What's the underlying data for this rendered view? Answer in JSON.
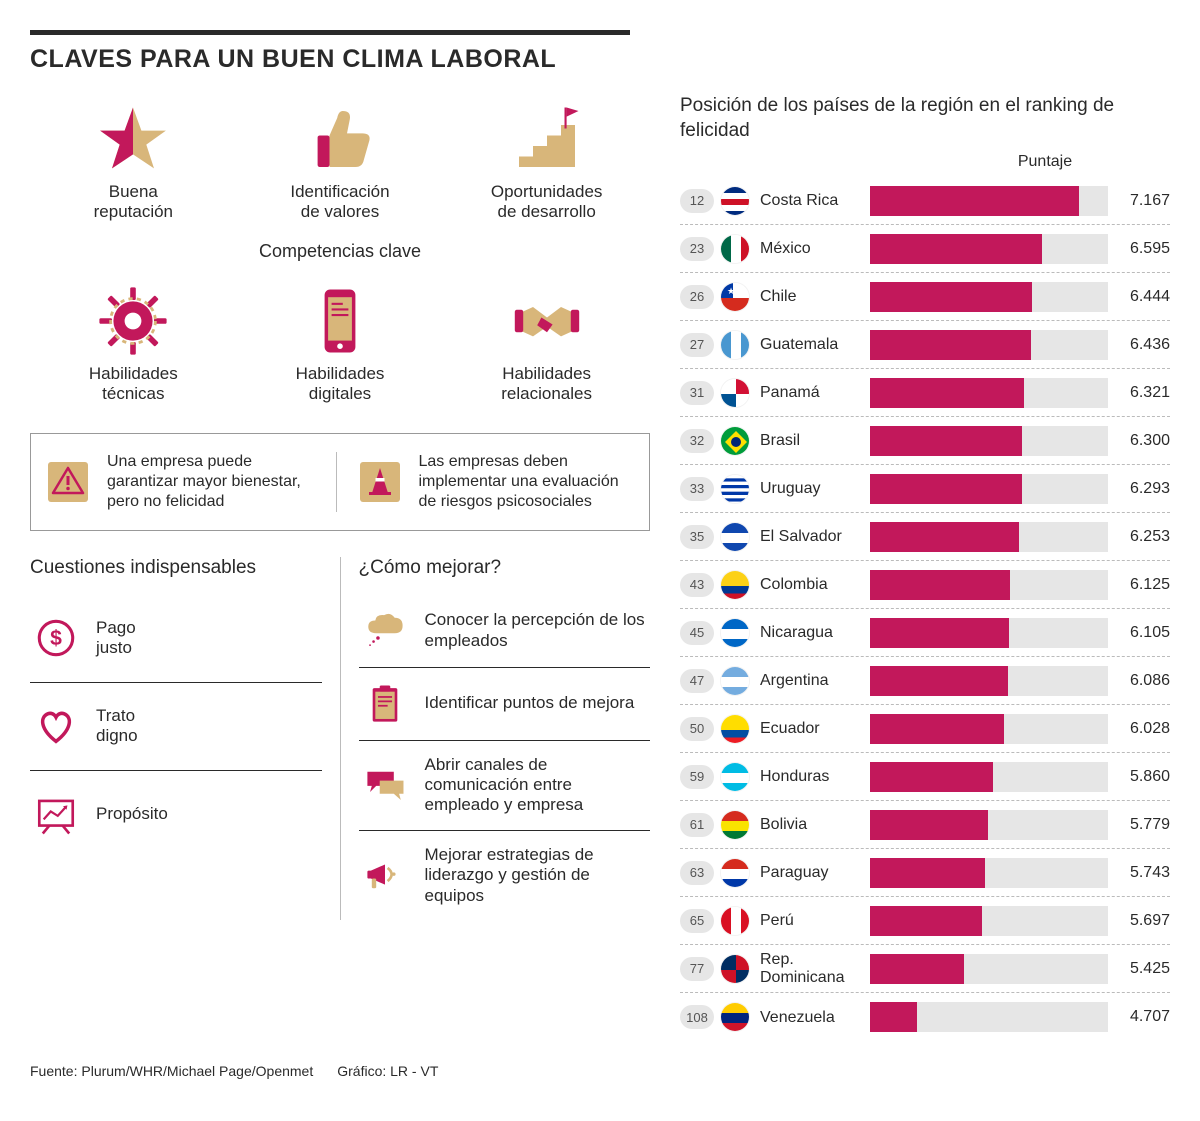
{
  "title": "CLAVES PARA UN BUEN CLIMA LABORAL",
  "colors": {
    "accent": "#c2185b",
    "tan": "#d8b67a",
    "pill": "#e6e6e6",
    "text": "#2a2a2a"
  },
  "iconsTop": [
    {
      "icon": "star",
      "label": "Buena\nreputación"
    },
    {
      "icon": "thumb",
      "label": "Identificación\nde valores"
    },
    {
      "icon": "stairs",
      "label": "Oportunidades\nde desarrollo"
    }
  ],
  "subHead": "Competencias clave",
  "iconsMid": [
    {
      "icon": "gear",
      "label": "Habilidades\ntécnicas"
    },
    {
      "icon": "phone",
      "label": "Habilidades\ndigitales"
    },
    {
      "icon": "handshake",
      "label": "Habilidades\nrelacionales"
    }
  ],
  "callouts": [
    {
      "icon": "warning",
      "text": "Una empresa puede garantizar mayor bienestar, pero no felicidad"
    },
    {
      "icon": "cone",
      "text": "Las empresas deben implementar una evaluación de riesgos psicosociales"
    }
  ],
  "essentials": {
    "title": "Cuestiones indispensables",
    "items": [
      {
        "icon": "dollar",
        "label": "Pago\njusto"
      },
      {
        "icon": "heart",
        "label": "Trato\ndigno"
      },
      {
        "icon": "chart",
        "label": "Propósito"
      }
    ]
  },
  "improve": {
    "title": "¿Cómo mejorar?",
    "items": [
      {
        "icon": "cloud",
        "label": "Conocer la percepción de los empleados"
      },
      {
        "icon": "clipboard",
        "label": "Identificar puntos de mejora"
      },
      {
        "icon": "chat",
        "label": "Abrir canales de comunicación entre empleado y empresa"
      },
      {
        "icon": "megaphone",
        "label": "Mejorar estrategias de liderazgo y gestión de equipos"
      }
    ]
  },
  "ranking": {
    "title": "Posición de los países de la región en el ranking de felicidad",
    "scoreHead": "Puntaje",
    "min": 4.0,
    "max": 7.6,
    "rows": [
      {
        "rank": 12,
        "country": "Costa Rica",
        "score": 7.167,
        "flagStripes": [
          "#002b7f",
          "#ffffff",
          "#ce1126",
          "#ffffff",
          "#002b7f"
        ]
      },
      {
        "rank": 23,
        "country": "México",
        "score": 6.595,
        "flagStripes": [
          "#006847",
          "#ffffff",
          "#ce1126"
        ],
        "vertical": true
      },
      {
        "rank": 26,
        "country": "Chile",
        "score": 6.444,
        "flagTop": "#0039a6",
        "flagTop2": "#ffffff",
        "flagBottom": "#d52b1e"
      },
      {
        "rank": 27,
        "country": "Guatemala",
        "score": 6.436,
        "flagStripes": [
          "#4997d0",
          "#ffffff",
          "#4997d0"
        ],
        "vertical": true
      },
      {
        "rank": 31,
        "country": "Panamá",
        "score": 6.321,
        "flagQuad": [
          "#ffffff",
          "#d21034",
          "#005293",
          "#ffffff"
        ]
      },
      {
        "rank": 32,
        "country": "Brasil",
        "score": 6.3,
        "flagSolid": "#009c3b",
        "flagDiamond": "#ffdf00"
      },
      {
        "rank": 33,
        "country": "Uruguay",
        "score": 6.293,
        "flagStripes": [
          "#ffffff",
          "#0038a8",
          "#ffffff",
          "#0038a8",
          "#ffffff",
          "#0038a8",
          "#ffffff",
          "#0038a8",
          "#ffffff"
        ]
      },
      {
        "rank": 35,
        "country": "El Salvador",
        "score": 6.253,
        "flagStripes": [
          "#0f47af",
          "#ffffff",
          "#0f47af"
        ]
      },
      {
        "rank": 43,
        "country": "Colombia",
        "score": 6.125,
        "flagStripes": [
          "#fcd116",
          "#fcd116",
          "#003893",
          "#ce1126"
        ]
      },
      {
        "rank": 45,
        "country": "Nicaragua",
        "score": 6.105,
        "flagStripes": [
          "#0067c6",
          "#ffffff",
          "#0067c6"
        ]
      },
      {
        "rank": 47,
        "country": "Argentina",
        "score": 6.086,
        "flagStripes": [
          "#74acdf",
          "#ffffff",
          "#74acdf"
        ]
      },
      {
        "rank": 50,
        "country": "Ecuador",
        "score": 6.028,
        "flagStripes": [
          "#ffdd00",
          "#ffdd00",
          "#034ea2",
          "#ed1c24"
        ]
      },
      {
        "rank": 59,
        "country": "Honduras",
        "score": 5.86,
        "flagStripes": [
          "#00bce4",
          "#ffffff",
          "#00bce4"
        ]
      },
      {
        "rank": 61,
        "country": "Bolivia",
        "score": 5.779,
        "flagStripes": [
          "#d52b1e",
          "#f9e300",
          "#007934"
        ]
      },
      {
        "rank": 63,
        "country": "Paraguay",
        "score": 5.743,
        "flagStripes": [
          "#d52b1e",
          "#ffffff",
          "#0038a8"
        ]
      },
      {
        "rank": 65,
        "country": "Perú",
        "score": 5.697,
        "flagStripes": [
          "#d91023",
          "#ffffff",
          "#d91023"
        ],
        "vertical": true
      },
      {
        "rank": 77,
        "country": "Rep. Dominicana",
        "score": 5.425,
        "flagQuad": [
          "#002d62",
          "#ce1126",
          "#ce1126",
          "#002d62"
        ]
      },
      {
        "rank": 108,
        "country": "Venezuela",
        "score": 4.707,
        "flagStripes": [
          "#ffcc00",
          "#00247d",
          "#cf142b"
        ]
      }
    ]
  },
  "footer": {
    "source": "Fuente: Plurum/WHR/Michael Page/Openmet",
    "credit": "Gráfico: LR - VT"
  }
}
